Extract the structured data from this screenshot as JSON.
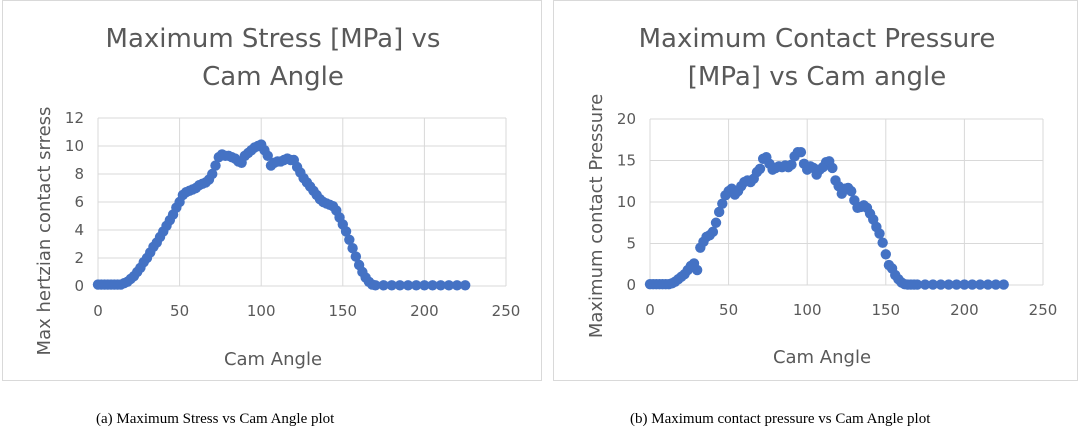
{
  "chart_data": [
    {
      "type": "scatter",
      "title_lines": [
        "Maximum Stress [MPa] vs",
        "Cam Angle"
      ],
      "xlabel": "Cam Angle",
      "ylabel": "Max hertzian contact srress",
      "xlim": [
        0,
        250
      ],
      "ylim": [
        0,
        12
      ],
      "xticks": [
        0,
        50,
        100,
        150,
        200,
        250
      ],
      "yticks": [
        0,
        2,
        4,
        6,
        8,
        10,
        12
      ],
      "grid": true,
      "marker_color": "#4472c4",
      "series": [
        {
          "name": "Maximum Stress",
          "x": [
            0,
            2,
            4,
            6,
            8,
            10,
            12,
            14,
            16,
            18,
            20,
            22,
            24,
            26,
            28,
            30,
            32,
            34,
            36,
            38,
            40,
            42,
            44,
            46,
            48,
            50,
            52,
            54,
            56,
            58,
            60,
            62,
            64,
            66,
            68,
            70,
            72,
            74,
            76,
            78,
            80,
            82,
            84,
            86,
            88,
            90,
            92,
            94,
            96,
            98,
            100,
            102,
            104,
            106,
            108,
            110,
            112,
            114,
            116,
            118,
            120,
            122,
            124,
            126,
            128,
            130,
            132,
            134,
            136,
            138,
            140,
            142,
            144,
            146,
            148,
            150,
            152,
            154,
            156,
            158,
            160,
            162,
            164,
            166,
            168,
            170,
            175,
            180,
            185,
            190,
            195,
            200,
            205,
            210,
            215,
            220,
            225
          ],
          "y": [
            0.1,
            0.1,
            0.1,
            0.1,
            0.1,
            0.1,
            0.1,
            0.1,
            0.2,
            0.3,
            0.5,
            0.7,
            1.0,
            1.3,
            1.7,
            2.0,
            2.4,
            2.8,
            3.1,
            3.5,
            3.9,
            4.3,
            4.7,
            5.1,
            5.6,
            6.0,
            6.5,
            6.7,
            6.8,
            6.9,
            7.0,
            7.2,
            7.3,
            7.4,
            7.6,
            8.0,
            8.6,
            9.2,
            9.4,
            9.3,
            9.3,
            9.2,
            9.1,
            8.9,
            8.8,
            9.3,
            9.5,
            9.7,
            9.9,
            10.0,
            10.1,
            9.7,
            9.3,
            8.6,
            8.8,
            8.9,
            8.9,
            9.0,
            9.1,
            9.0,
            9.0,
            8.5,
            8.1,
            7.7,
            7.4,
            7.1,
            6.8,
            6.5,
            6.2,
            6.0,
            5.9,
            5.8,
            5.7,
            5.4,
            4.9,
            4.4,
            3.9,
            3.3,
            2.7,
            2.1,
            1.5,
            1.0,
            0.6,
            0.3,
            0.1,
            0.05,
            0.05,
            0.05,
            0.05,
            0.05,
            0.05,
            0.05,
            0.05,
            0.05,
            0.05,
            0.05,
            0.05
          ]
        }
      ]
    },
    {
      "type": "scatter",
      "title_lines": [
        "Maximum Contact Pressure",
        "[MPa] vs Cam angle"
      ],
      "xlabel": "Cam Angle",
      "ylabel": "Maximum contact Pressure",
      "xlim": [
        0,
        250
      ],
      "ylim": [
        0,
        20
      ],
      "xticks": [
        0,
        50,
        100,
        150,
        200,
        250
      ],
      "yticks": [
        0,
        5,
        10,
        15,
        20
      ],
      "grid": true,
      "marker_color": "#4472c4",
      "series": [
        {
          "name": "Maximum Contact Pressure",
          "x": [
            0,
            2,
            4,
            6,
            8,
            10,
            12,
            14,
            16,
            18,
            20,
            22,
            24,
            26,
            28,
            30,
            32,
            34,
            36,
            38,
            40,
            42,
            44,
            46,
            48,
            50,
            52,
            54,
            56,
            58,
            60,
            62,
            64,
            66,
            68,
            70,
            72,
            74,
            76,
            78,
            80,
            82,
            84,
            86,
            88,
            90,
            92,
            94,
            96,
            98,
            100,
            102,
            104,
            106,
            108,
            110,
            112,
            114,
            116,
            118,
            120,
            122,
            124,
            126,
            128,
            130,
            132,
            134,
            136,
            138,
            140,
            142,
            144,
            146,
            148,
            150,
            152,
            154,
            156,
            158,
            160,
            162,
            164,
            166,
            168,
            170,
            175,
            180,
            185,
            190,
            195,
            200,
            205,
            210,
            215,
            220,
            225
          ],
          "y": [
            0.1,
            0.1,
            0.1,
            0.1,
            0.1,
            0.1,
            0.1,
            0.2,
            0.4,
            0.7,
            1.0,
            1.3,
            1.8,
            2.3,
            2.6,
            1.8,
            4.5,
            5.2,
            5.8,
            6.0,
            6.4,
            7.5,
            8.8,
            9.8,
            10.8,
            11.3,
            11.6,
            10.9,
            11.3,
            11.9,
            12.4,
            12.6,
            12.4,
            12.8,
            13.6,
            14.0,
            15.2,
            15.4,
            14.6,
            13.9,
            14.1,
            14.3,
            14.2,
            14.4,
            14.2,
            14.5,
            15.5,
            16.0,
            16.0,
            14.6,
            13.9,
            14.3,
            14.1,
            13.3,
            13.9,
            14.2,
            14.8,
            14.9,
            14.1,
            12.6,
            11.9,
            11.0,
            11.6,
            11.7,
            11.3,
            10.2,
            9.3,
            9.4,
            9.6,
            9.3,
            8.6,
            7.9,
            7.0,
            6.2,
            5.1,
            3.7,
            2.4,
            2.0,
            1.2,
            0.7,
            0.3,
            0.1,
            0.05,
            0.05,
            0.05,
            0.05,
            0.05,
            0.05,
            0.05,
            0.05,
            0.05,
            0.05,
            0.05,
            0.05,
            0.05,
            0.05,
            0.05
          ]
        }
      ]
    }
  ],
  "captions": {
    "a": "(a) Maximum Stress vs Cam Angle plot",
    "b": "(b) Maximum contact pressure vs Cam Angle plot"
  }
}
